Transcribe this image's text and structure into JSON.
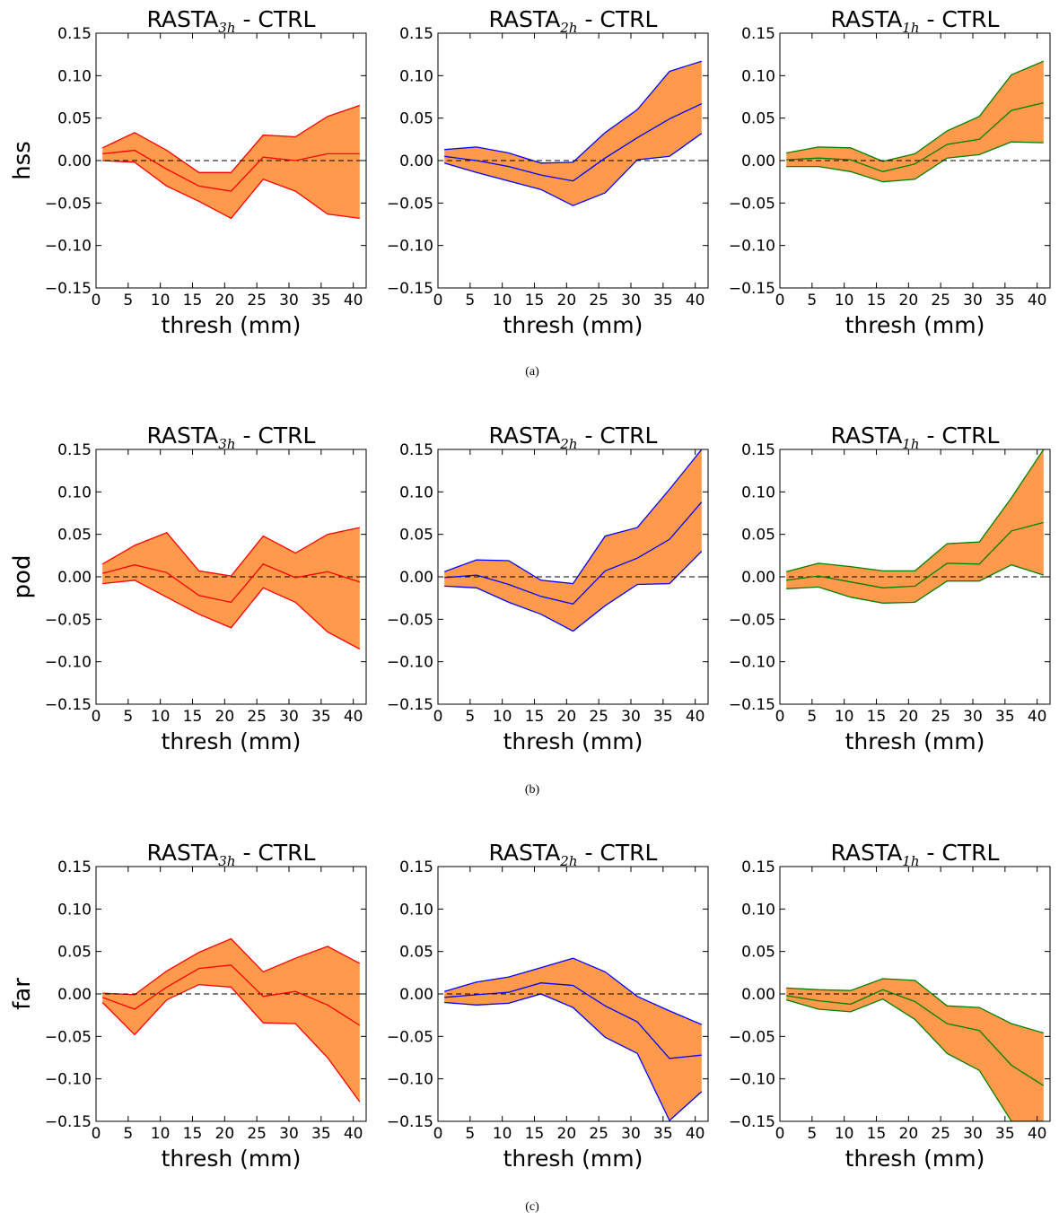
{
  "colors": {
    "fill": "#ff9a4d",
    "line_3h": "#ff0000",
    "line_2h": "#0000ff",
    "line_1h": "#008000",
    "zero_line": "#000000"
  },
  "captions": [
    "(a)",
    "(b)",
    "(c)"
  ],
  "chart_data": [
    {
      "type": "area",
      "row": 0,
      "col": 0,
      "caption": "(a)",
      "title_main": "RASTA",
      "title_sub": "3h",
      "title_suffix": " - CTRL",
      "ylabel": "hss",
      "xlabel": "thresh (mm)",
      "xlim": [
        0,
        42
      ],
      "ylim": [
        -0.15,
        0.15
      ],
      "xticks": [
        "0",
        "5",
        "10",
        "15",
        "20",
        "25",
        "30",
        "35",
        "40"
      ],
      "yticks": [
        "0.15",
        "0.10",
        "0.05",
        "0.00",
        "−0.05",
        "−0.10",
        "−0.15"
      ],
      "line": "line_3h",
      "zero_line": true,
      "x": [
        1,
        6,
        11,
        16,
        21,
        26,
        31,
        36,
        41
      ],
      "upper": [
        0.015,
        0.033,
        0.012,
        -0.014,
        -0.014,
        0.03,
        0.028,
        0.052,
        0.065
      ],
      "median": [
        0.008,
        0.012,
        -0.01,
        -0.03,
        -0.036,
        0.004,
        0.0,
        0.008,
        0.008
      ],
      "lower": [
        0.0,
        -0.002,
        -0.03,
        -0.048,
        -0.068,
        -0.022,
        -0.036,
        -0.063,
        -0.068
      ]
    },
    {
      "type": "area",
      "row": 0,
      "col": 1,
      "caption": "(a)",
      "title_main": "RASTA",
      "title_sub": "2h",
      "title_suffix": " - CTRL",
      "ylabel": "",
      "xlabel": "thresh (mm)",
      "xlim": [
        0,
        42
      ],
      "ylim": [
        -0.15,
        0.15
      ],
      "xticks": [
        "0",
        "5",
        "10",
        "15",
        "20",
        "25",
        "30",
        "35",
        "40"
      ],
      "yticks": [
        "0.15",
        "0.10",
        "0.05",
        "0.00",
        "−0.05",
        "−0.10",
        "−0.15"
      ],
      "line": "line_2h",
      "zero_line": true,
      "x": [
        1,
        6,
        11,
        16,
        21,
        26,
        31,
        36,
        41
      ],
      "upper": [
        0.013,
        0.016,
        0.009,
        -0.003,
        -0.002,
        0.033,
        0.06,
        0.105,
        0.117
      ],
      "median": [
        0.005,
        0.0,
        -0.007,
        -0.017,
        -0.024,
        0.003,
        0.027,
        0.049,
        0.067
      ],
      "lower": [
        -0.003,
        -0.014,
        -0.024,
        -0.034,
        -0.053,
        -0.038,
        0.001,
        0.005,
        0.032
      ]
    },
    {
      "type": "area",
      "row": 0,
      "col": 2,
      "caption": "(a)",
      "title_main": "RASTA",
      "title_sub": "1h",
      "title_suffix": " - CTRL",
      "ylabel": "",
      "xlabel": "thresh (mm)",
      "xlim": [
        0,
        42
      ],
      "ylim": [
        -0.15,
        0.15
      ],
      "xticks": [
        "0",
        "5",
        "10",
        "15",
        "20",
        "25",
        "30",
        "35",
        "40"
      ],
      "yticks": [
        "0.15",
        "0.10",
        "0.05",
        "0.00",
        "−0.05",
        "−0.10",
        "−0.15"
      ],
      "line": "line_1h",
      "zero_line": true,
      "x": [
        1,
        6,
        11,
        16,
        21,
        26,
        31,
        36,
        41
      ],
      "upper": [
        0.009,
        0.016,
        0.015,
        -0.001,
        0.008,
        0.035,
        0.052,
        0.101,
        0.117
      ],
      "median": [
        0.001,
        0.003,
        0.001,
        -0.013,
        -0.004,
        0.019,
        0.025,
        0.059,
        0.068
      ],
      "lower": [
        -0.007,
        -0.007,
        -0.013,
        -0.025,
        -0.022,
        0.003,
        0.007,
        0.022,
        0.021
      ]
    },
    {
      "type": "area",
      "row": 1,
      "col": 0,
      "caption": "(b)",
      "title_main": "RASTA",
      "title_sub": "3h",
      "title_suffix": " - CTRL",
      "ylabel": "pod",
      "xlabel": "thresh (mm)",
      "xlim": [
        0,
        42
      ],
      "ylim": [
        -0.15,
        0.15
      ],
      "xticks": [
        "0",
        "5",
        "10",
        "15",
        "20",
        "25",
        "30",
        "35",
        "40"
      ],
      "yticks": [
        "0.15",
        "0.10",
        "0.05",
        "0.00",
        "−0.05",
        "−0.10",
        "−0.15"
      ],
      "line": "line_3h",
      "zero_line": true,
      "x": [
        1,
        6,
        11,
        16,
        21,
        26,
        31,
        36,
        41
      ],
      "upper": [
        0.015,
        0.037,
        0.052,
        0.007,
        0.001,
        0.048,
        0.028,
        0.05,
        0.058
      ],
      "median": [
        0.004,
        0.014,
        0.005,
        -0.022,
        -0.03,
        0.015,
        -0.001,
        0.006,
        -0.006
      ],
      "lower": [
        -0.008,
        -0.004,
        -0.024,
        -0.044,
        -0.06,
        -0.013,
        -0.03,
        -0.065,
        -0.085
      ]
    },
    {
      "type": "area",
      "row": 1,
      "col": 1,
      "caption": "(b)",
      "title_main": "RASTA",
      "title_sub": "2h",
      "title_suffix": " - CTRL",
      "ylabel": "",
      "xlabel": "thresh (mm)",
      "xlim": [
        0,
        42
      ],
      "ylim": [
        -0.15,
        0.15
      ],
      "xticks": [
        "0",
        "5",
        "10",
        "15",
        "20",
        "25",
        "30",
        "35",
        "40"
      ],
      "yticks": [
        "0.15",
        "0.10",
        "0.05",
        "0.00",
        "−0.05",
        "−0.10",
        "−0.15"
      ],
      "line": "line_2h",
      "zero_line": true,
      "x": [
        1,
        6,
        11,
        16,
        21,
        26,
        31,
        36,
        41
      ],
      "upper": [
        0.006,
        0.02,
        0.019,
        -0.004,
        -0.008,
        0.048,
        0.058,
        0.103,
        0.15
      ],
      "median": [
        -0.001,
        0.002,
        -0.009,
        -0.023,
        -0.032,
        0.007,
        0.022,
        0.044,
        0.088
      ],
      "lower": [
        -0.011,
        -0.013,
        -0.03,
        -0.044,
        -0.064,
        -0.034,
        -0.009,
        -0.008,
        0.03
      ]
    },
    {
      "type": "area",
      "row": 1,
      "col": 2,
      "caption": "(b)",
      "title_main": "RASTA",
      "title_sub": "1h",
      "title_suffix": " - CTRL",
      "ylabel": "",
      "xlabel": "thresh (mm)",
      "xlim": [
        0,
        42
      ],
      "ylim": [
        -0.15,
        0.15
      ],
      "xticks": [
        "0",
        "5",
        "10",
        "15",
        "20",
        "25",
        "30",
        "35",
        "40"
      ],
      "yticks": [
        "0.15",
        "0.10",
        "0.05",
        "0.00",
        "−0.05",
        "−0.10",
        "−0.15"
      ],
      "line": "line_1h",
      "zero_line": true,
      "x": [
        1,
        6,
        11,
        16,
        21,
        26,
        31,
        36,
        41
      ],
      "upper": [
        0.006,
        0.016,
        0.012,
        0.007,
        0.007,
        0.039,
        0.041,
        0.093,
        0.15
      ],
      "median": [
        -0.004,
        0.001,
        -0.006,
        -0.013,
        -0.011,
        0.016,
        0.015,
        0.054,
        0.064
      ],
      "lower": [
        -0.014,
        -0.012,
        -0.024,
        -0.031,
        -0.03,
        -0.005,
        -0.005,
        0.014,
        0.002
      ]
    },
    {
      "type": "area",
      "row": 2,
      "col": 0,
      "caption": "(c)",
      "title_main": "RASTA",
      "title_sub": "3h",
      "title_suffix": " - CTRL",
      "ylabel": "far",
      "xlabel": "thresh (mm)",
      "xlim": [
        0,
        42
      ],
      "ylim": [
        -0.15,
        0.15
      ],
      "xticks": [
        "0",
        "5",
        "10",
        "15",
        "20",
        "25",
        "30",
        "35",
        "40"
      ],
      "yticks": [
        "0.15",
        "0.10",
        "0.05",
        "0.00",
        "−0.05",
        "−0.10",
        "−0.15"
      ],
      "line": "line_3h",
      "zero_line": true,
      "x": [
        1,
        6,
        11,
        16,
        21,
        26,
        31,
        36,
        41
      ],
      "upper": [
        0.001,
        -0.001,
        0.027,
        0.049,
        0.065,
        0.026,
        0.042,
        0.056,
        0.036
      ],
      "median": [
        -0.004,
        -0.018,
        0.008,
        0.03,
        0.034,
        -0.003,
        0.003,
        -0.013,
        -0.037
      ],
      "lower": [
        -0.01,
        -0.048,
        -0.007,
        0.011,
        0.008,
        -0.034,
        -0.035,
        -0.075,
        -0.127
      ]
    },
    {
      "type": "area",
      "row": 2,
      "col": 1,
      "caption": "(c)",
      "title_main": "RASTA",
      "title_sub": "2h",
      "title_suffix": " - CTRL",
      "ylabel": "",
      "xlabel": "thresh (mm)",
      "xlim": [
        0,
        42
      ],
      "ylim": [
        -0.15,
        0.15
      ],
      "xticks": [
        "0",
        "5",
        "10",
        "15",
        "20",
        "25",
        "30",
        "35",
        "40"
      ],
      "yticks": [
        "0.15",
        "0.10",
        "0.05",
        "0.00",
        "−0.05",
        "−0.10",
        "−0.15"
      ],
      "line": "line_2h",
      "zero_line": true,
      "x": [
        1,
        6,
        11,
        16,
        21,
        26,
        31,
        36,
        41
      ],
      "upper": [
        0.003,
        0.014,
        0.02,
        0.031,
        0.042,
        0.026,
        -0.003,
        -0.02,
        -0.036
      ],
      "median": [
        -0.004,
        -0.001,
        0.002,
        0.013,
        0.01,
        -0.014,
        -0.033,
        -0.076,
        -0.072
      ],
      "lower": [
        -0.01,
        -0.013,
        -0.011,
        0.0,
        -0.016,
        -0.051,
        -0.07,
        -0.149,
        -0.115
      ]
    },
    {
      "type": "area",
      "row": 2,
      "col": 2,
      "caption": "(c)",
      "title_main": "RASTA",
      "title_sub": "1h",
      "title_suffix": " - CTRL",
      "ylabel": "",
      "xlabel": "thresh (mm)",
      "xlim": [
        0,
        42
      ],
      "ylim": [
        -0.15,
        0.15
      ],
      "xticks": [
        "0",
        "5",
        "10",
        "15",
        "20",
        "25",
        "30",
        "35",
        "40"
      ],
      "yticks": [
        "0.15",
        "0.10",
        "0.05",
        "0.00",
        "−0.05",
        "−0.10",
        "−0.15"
      ],
      "line": "line_1h",
      "zero_line": true,
      "x": [
        1,
        6,
        11,
        16,
        21,
        26,
        31,
        36,
        41
      ],
      "upper": [
        0.007,
        0.005,
        0.004,
        0.018,
        0.016,
        -0.014,
        -0.016,
        -0.035,
        -0.046
      ],
      "median": [
        -0.002,
        -0.008,
        -0.012,
        0.005,
        -0.009,
        -0.035,
        -0.043,
        -0.084,
        -0.108
      ],
      "lower": [
        -0.007,
        -0.018,
        -0.021,
        -0.006,
        -0.03,
        -0.07,
        -0.09,
        -0.15,
        -0.15
      ]
    }
  ]
}
